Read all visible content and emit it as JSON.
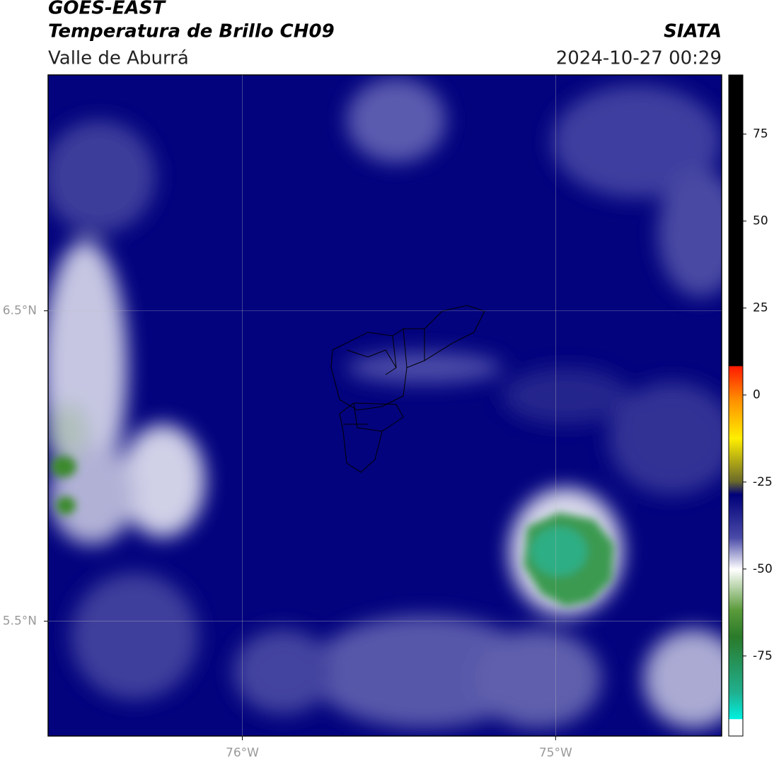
{
  "header": {
    "title": "GOES-EAST",
    "subtitle": "Temperatura de Brillo CH09",
    "region": "Valle de Aburrá",
    "source": "SIATA",
    "datetime": "2024-10-27 00:29"
  },
  "map": {
    "xlim": [
      -76.62,
      -74.47
    ],
    "ylim": [
      5.13,
      7.26
    ],
    "xticks": [
      {
        "value": -76,
        "label": "76°W"
      },
      {
        "value": -75,
        "label": "75°W"
      }
    ],
    "yticks": [
      {
        "value": 6.5,
        "label": "6.5°N"
      },
      {
        "value": 5.5,
        "label": "5.5°N"
      }
    ],
    "grid": true
  },
  "colorbar": {
    "lim": [
      -98,
      92
    ],
    "ticks": [
      75,
      50,
      25,
      0,
      -25,
      -50,
      -75
    ]
  }
}
